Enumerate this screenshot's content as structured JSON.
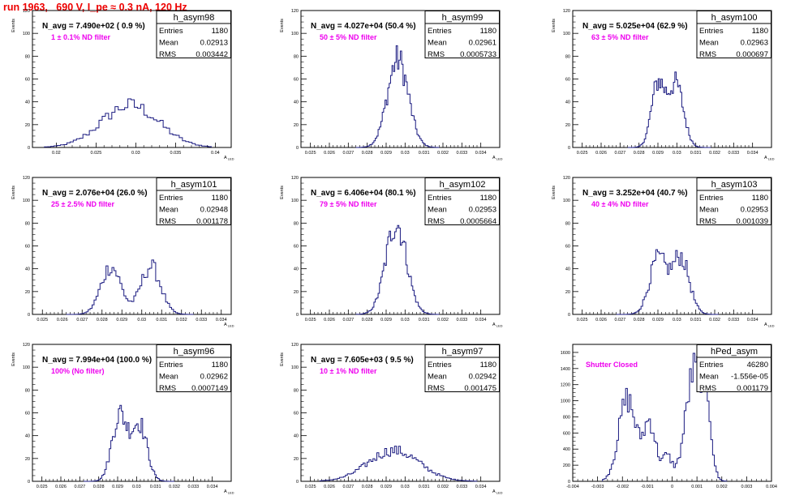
{
  "header": {
    "run_title": "run 1963,   690 V, I_pe ≈ 0.3 nA, 120 Hz"
  },
  "colors": {
    "hist_line": "#1a1a80",
    "annotation": "#ee00ee",
    "title_red": "#ee0000",
    "frame": "#000000"
  },
  "chart_data": [
    {
      "type": "bar",
      "name": "h_asym98",
      "ylabel": "Events",
      "xlabel": "A_LED",
      "nlabel": "N_avg = 7.490e+02 ( 0.9 %)",
      "annotation": "1 ± 0.1% ND filter",
      "stats": [
        [
          "Entries",
          "1180"
        ],
        [
          "Mean",
          "0.02913"
        ],
        [
          "RMS",
          "0.003442"
        ]
      ],
      "xlim": [
        0.017,
        0.042
      ],
      "ylim": [
        0,
        120
      ],
      "xticks": [
        0.02,
        0.025,
        0.03,
        0.035,
        0.04
      ],
      "xticklabels": [
        "0.02",
        "0.025",
        "0.03",
        "0.035",
        "0.04"
      ],
      "yticks": [
        0,
        20,
        40,
        60,
        80,
        100,
        120
      ],
      "hist": {
        "shape": "g",
        "params": [
          [
            0.0293,
            0.0036,
            37
          ]
        ],
        "xmin": 0.0185,
        "xmax": 0.0395,
        "bins": 52
      }
    },
    {
      "type": "bar",
      "name": "h_asym99",
      "ylabel": "Events",
      "xlabel": "A_LED",
      "nlabel": "N_avg = 4.027e+04 (50.4 %)",
      "annotation": "50 ± 5% ND filter",
      "stats": [
        [
          "Entries",
          "1180"
        ],
        [
          "Mean",
          "0.02961"
        ],
        [
          "RMS",
          "0.0005733"
        ]
      ],
      "xlim": [
        0.0245,
        0.035
      ],
      "ylim": [
        0,
        120
      ],
      "xticks": [
        0.025,
        0.026,
        0.027,
        0.028,
        0.029,
        0.03,
        0.031,
        0.032,
        0.033,
        0.034
      ],
      "xticklabels": [
        "0.025",
        "0.026",
        "0.027",
        "0.028",
        "0.029",
        "0.03",
        "0.031",
        "0.032",
        "0.033",
        "0.034"
      ],
      "yticks": [
        0,
        20,
        40,
        60,
        80,
        100,
        120
      ],
      "hist": {
        "shape": "g",
        "params": [
          [
            0.02962,
            0.00055,
            77
          ]
        ],
        "xmin": 0.0274,
        "xmax": 0.0318,
        "bins": 60
      }
    },
    {
      "type": "bar",
      "name": "h_asym100",
      "ylabel": "Events",
      "xlabel": "A_LED",
      "nlabel": "N_avg = 5.025e+04 (62.9 %)",
      "annotation": "63 ± 5% ND filter",
      "stats": [
        [
          "Entries",
          "1180"
        ],
        [
          "Mean",
          "0.02963"
        ],
        [
          "RMS",
          "0.000697"
        ]
      ],
      "xlim": [
        0.0245,
        0.035
      ],
      "ylim": [
        0,
        120
      ],
      "xticks": [
        0.025,
        0.026,
        0.027,
        0.028,
        0.029,
        0.03,
        0.031,
        0.032,
        0.033,
        0.034
      ],
      "xticklabels": [
        "0.025",
        "0.026",
        "0.027",
        "0.028",
        "0.029",
        "0.03",
        "0.031",
        "0.032",
        "0.033",
        "0.034"
      ],
      "yticks": [
        0,
        20,
        40,
        60,
        80,
        100,
        120
      ],
      "hist": {
        "shape": "g",
        "params": [
          [
            0.029,
            0.00035,
            55
          ],
          [
            0.02995,
            0.0004,
            55
          ]
        ],
        "xmin": 0.0274,
        "xmax": 0.0318,
        "bins": 60
      }
    },
    {
      "type": "bar",
      "name": "h_asym101",
      "ylabel": "Events",
      "xlabel": "A_LED",
      "nlabel": "N_avg = 2.076e+04 (26.0 %)",
      "annotation": "25 ± 2.5% ND filter",
      "stats": [
        [
          "Entries",
          "1180"
        ],
        [
          "Mean",
          "0.02948"
        ],
        [
          "RMS",
          "0.001178"
        ]
      ],
      "xlim": [
        0.0245,
        0.0345
      ],
      "ylim": [
        0,
        120
      ],
      "xticks": [
        0.025,
        0.026,
        0.027,
        0.028,
        0.029,
        0.03,
        0.031,
        0.032,
        0.033,
        0.034
      ],
      "xticklabels": [
        "0.025",
        "0.026",
        "0.027",
        "0.028",
        "0.029",
        "0.03",
        "0.031",
        "0.032",
        "0.033",
        "0.034"
      ],
      "yticks": [
        0,
        20,
        40,
        60,
        80,
        100,
        120
      ],
      "hist": {
        "shape": "g",
        "params": [
          [
            0.02845,
            0.0005,
            42
          ],
          [
            0.03045,
            0.0005,
            42
          ]
        ],
        "xmin": 0.0262,
        "xmax": 0.0326,
        "bins": 64
      }
    },
    {
      "type": "bar",
      "name": "h_asym102",
      "ylabel": "Events",
      "xlabel": "A_LED",
      "nlabel": "N_avg = 6.406e+04 (80.1 %)",
      "annotation": "79 ± 5% ND filter",
      "stats": [
        [
          "Entries",
          "1180"
        ],
        [
          "Mean",
          "0.02953"
        ],
        [
          "RMS",
          "0.0005664"
        ]
      ],
      "xlim": [
        0.0245,
        0.035
      ],
      "ylim": [
        0,
        120
      ],
      "xticks": [
        0.025,
        0.026,
        0.027,
        0.028,
        0.029,
        0.03,
        0.031,
        0.032,
        0.033,
        0.034
      ],
      "xticklabels": [
        "0.025",
        "0.026",
        "0.027",
        "0.028",
        "0.029",
        "0.03",
        "0.031",
        "0.032",
        "0.033",
        "0.034"
      ],
      "yticks": [
        0,
        20,
        40,
        60,
        80,
        100,
        120
      ],
      "hist": {
        "shape": "g",
        "params": [
          [
            0.02953,
            0.00055,
            80
          ]
        ],
        "xmin": 0.0274,
        "xmax": 0.0318,
        "bins": 60
      }
    },
    {
      "type": "bar",
      "name": "h_asym103",
      "ylabel": "Events",
      "xlabel": "A_LED",
      "nlabel": "N_avg = 3.252e+04 (40.7 %)",
      "annotation": "40 ± 4% ND filter",
      "stats": [
        [
          "Entries",
          "1180"
        ],
        [
          "Mean",
          "0.02953"
        ],
        [
          "RMS",
          "0.001039"
        ]
      ],
      "xlim": [
        0.0245,
        0.035
      ],
      "ylim": [
        0,
        120
      ],
      "xticks": [
        0.025,
        0.026,
        0.027,
        0.028,
        0.029,
        0.03,
        0.031,
        0.032,
        0.033,
        0.034
      ],
      "xticklabels": [
        "0.025",
        "0.026",
        "0.027",
        "0.028",
        "0.029",
        "0.03",
        "0.031",
        "0.032",
        "0.033",
        "0.034"
      ],
      "yticks": [
        0,
        20,
        40,
        60,
        80,
        100,
        120
      ],
      "hist": {
        "shape": "g",
        "params": [
          [
            0.029,
            0.00045,
            48
          ],
          [
            0.0302,
            0.00045,
            50
          ]
        ],
        "xmin": 0.0268,
        "xmax": 0.0322,
        "bins": 62
      }
    },
    {
      "type": "bar",
      "name": "h_asym96",
      "ylabel": "Events",
      "xlabel": "A_LED",
      "nlabel": "N_avg = 7.994e+04 (100.0 %)",
      "annotation": "100% (No filter)",
      "stats": [
        [
          "Entries",
          "1180"
        ],
        [
          "Mean",
          "0.02962"
        ],
        [
          "RMS",
          "0.0007149"
        ]
      ],
      "xlim": [
        0.0245,
        0.035
      ],
      "ylim": [
        0,
        120
      ],
      "xticks": [
        0.025,
        0.026,
        0.027,
        0.028,
        0.029,
        0.03,
        0.031,
        0.032,
        0.033,
        0.034
      ],
      "xticklabels": [
        "0.025",
        "0.026",
        "0.027",
        "0.028",
        "0.029",
        "0.03",
        "0.031",
        "0.032",
        "0.033",
        "0.034"
      ],
      "yticks": [
        0,
        20,
        40,
        60,
        80,
        100,
        120
      ],
      "hist": {
        "shape": "g",
        "params": [
          [
            0.0291,
            0.0004,
            58
          ],
          [
            0.03015,
            0.0004,
            50
          ]
        ],
        "xmin": 0.0272,
        "xmax": 0.032,
        "bins": 60
      }
    },
    {
      "type": "bar",
      "name": "h_asym97",
      "ylabel": "Events",
      "xlabel": "A_LED",
      "nlabel": "N_avg = 7.605e+03 ( 9.5 %)",
      "annotation": "10 ± 1% ND filter",
      "stats": [
        [
          "Entries",
          "1180"
        ],
        [
          "Mean",
          "0.02942"
        ],
        [
          "RMS",
          "0.001475"
        ]
      ],
      "xlim": [
        0.0245,
        0.035
      ],
      "ylim": [
        0,
        120
      ],
      "xticks": [
        0.025,
        0.026,
        0.027,
        0.028,
        0.029,
        0.03,
        0.031,
        0.032,
        0.033,
        0.034
      ],
      "xticklabels": [
        "0.025",
        "0.026",
        "0.027",
        "0.028",
        "0.029",
        "0.03",
        "0.031",
        "0.032",
        "0.033",
        "0.034"
      ],
      "yticks": [
        0,
        20,
        40,
        60,
        80,
        100,
        120
      ],
      "hist": {
        "shape": "g",
        "params": [
          [
            0.0294,
            0.00135,
            27
          ]
        ],
        "xmin": 0.0255,
        "xmax": 0.0338,
        "bins": 80
      }
    },
    {
      "type": "bar",
      "name": "hPed_asym",
      "ylabel": "",
      "xlabel": "",
      "nlabel": "",
      "annotation": "Shutter Closed",
      "stats": [
        [
          "Entries",
          "46280"
        ],
        [
          "Mean",
          "-1.556e-05"
        ],
        [
          "RMS",
          "0.001179"
        ]
      ],
      "xlim": [
        -0.004,
        0.004
      ],
      "ylim": [
        0,
        1700
      ],
      "xticks": [
        -0.004,
        -0.003,
        -0.002,
        -0.001,
        0,
        0.001,
        0.002,
        0.003,
        0.004
      ],
      "xticklabels": [
        "-0.004",
        "-0.003",
        "-0.002",
        "-0.001",
        "0",
        "0.001",
        "0.002",
        "0.003",
        "0.004"
      ],
      "yticks": [
        0,
        200,
        400,
        600,
        800,
        1000,
        1200,
        1400,
        1600
      ],
      "hist": {
        "shape": "g",
        "params": [
          [
            -0.0018,
            0.00035,
            1020
          ],
          [
            -0.0009,
            0.00025,
            720
          ],
          [
            0.0009,
            0.00035,
            1380
          ],
          [
            0.0014,
            0.00018,
            700
          ],
          [
            -0.0002,
            0.0002,
            300
          ]
        ],
        "xmin": -0.0028,
        "xmax": 0.0022,
        "bins": 70
      }
    }
  ]
}
